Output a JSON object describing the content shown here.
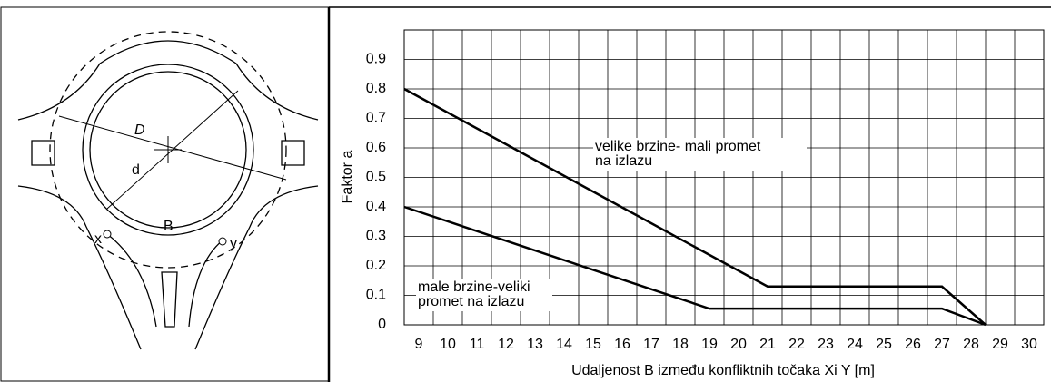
{
  "diagram": {
    "labels": [
      "D",
      "d",
      "B",
      "x",
      "y"
    ]
  },
  "chart_data": {
    "type": "line",
    "xlabel": "Udaljenost B između konfliktnih točaka Xi Y [m]",
    "ylabel": "Faktor a",
    "xlim": [
      8.5,
      30.5
    ],
    "xticks": [
      9,
      10,
      11,
      12,
      13,
      14,
      15,
      16,
      17,
      18,
      19,
      20,
      21,
      22,
      23,
      24,
      25,
      26,
      27,
      28,
      29,
      30
    ],
    "ylim": [
      0,
      1
    ],
    "yticks": [
      0,
      0.1,
      0.2,
      0.3,
      0.4,
      0.5,
      0.6,
      0.7,
      0.8,
      0.9
    ],
    "grid": true,
    "series": [
      {
        "color": "#000000",
        "x": [
          8.5,
          21,
          27,
          28.5
        ],
        "values": [
          0.8,
          0.13,
          0.13,
          0
        ]
      },
      {
        "color": "#000000",
        "x": [
          8.5,
          19,
          27,
          28.5
        ],
        "values": [
          0.4,
          0.055,
          0.055,
          0
        ]
      }
    ],
    "annotations": [
      [
        "velike brzine- mali promet",
        "na izlazu"
      ],
      [
        "male brzine-veliki",
        "promet na izlazu"
      ]
    ]
  }
}
